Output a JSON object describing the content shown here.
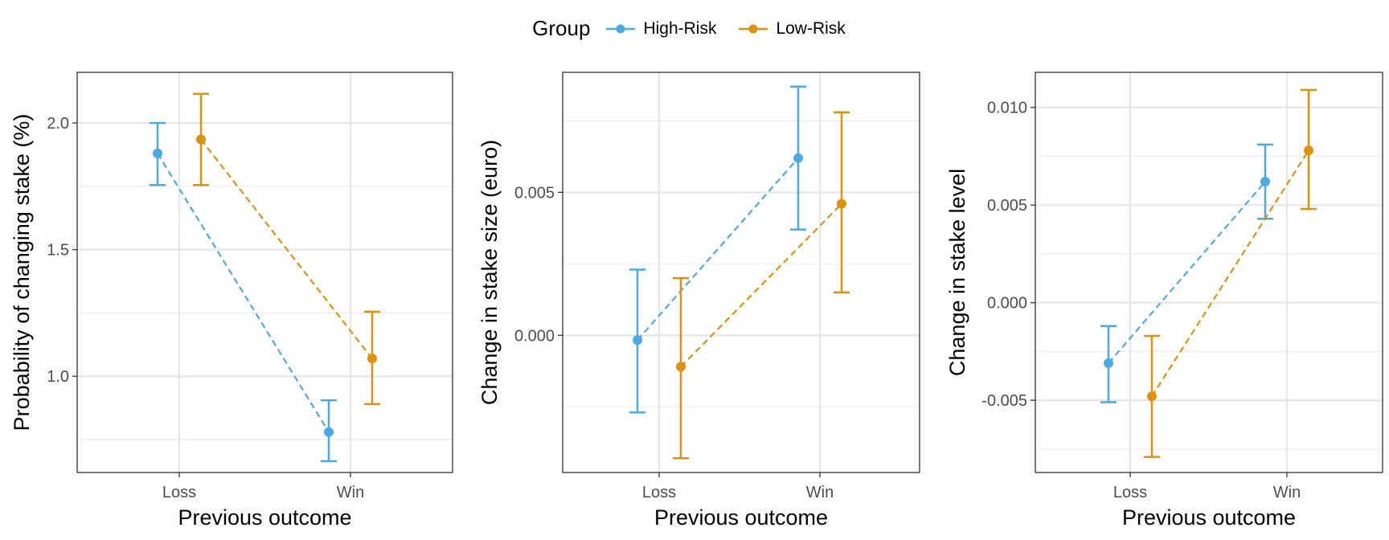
{
  "legend": {
    "title": "Group",
    "items": [
      {
        "label": "High-Risk",
        "color": "#4DA9E1"
      },
      {
        "label": "Low-Risk",
        "color": "#DE900F"
      }
    ]
  },
  "chart_data": [
    {
      "type": "line",
      "xlabel": "Previous outcome",
      "ylabel": "Probability of changing stake (%)",
      "categories": [
        "Loss",
        "Win"
      ],
      "ylim": [
        0.62,
        2.2
      ],
      "yticks": [
        1.0,
        1.5,
        2.0
      ],
      "ytick_labels": [
        "1.0",
        "1.5",
        "2.0"
      ],
      "grid": true,
      "series": [
        {
          "name": "High-Risk",
          "color": "#4DA9E1",
          "values": [
            1.88,
            0.78
          ],
          "lower": [
            1.755,
            0.665
          ],
          "upper": [
            2.0,
            0.905
          ]
        },
        {
          "name": "Low-Risk",
          "color": "#DE900F",
          "values": [
            1.935,
            1.07
          ],
          "lower": [
            1.755,
            0.89
          ],
          "upper": [
            2.115,
            1.255
          ]
        }
      ]
    },
    {
      "type": "line",
      "xlabel": "Previous outcome",
      "ylabel": "Change in stake size (euro)",
      "categories": [
        "Loss",
        "Win"
      ],
      "ylim": [
        -0.0048,
        0.0092
      ],
      "yticks": [
        0.0,
        0.005
      ],
      "ytick_labels": [
        "0.000",
        "0.005"
      ],
      "grid": true,
      "series": [
        {
          "name": "High-Risk",
          "color": "#4DA9E1",
          "values": [
            -0.00017,
            0.0062
          ],
          "lower": [
            -0.0027,
            0.0037
          ],
          "upper": [
            0.0023,
            0.0087
          ]
        },
        {
          "name": "Low-Risk",
          "color": "#DE900F",
          "values": [
            -0.0011,
            0.0046
          ],
          "lower": [
            -0.0043,
            0.0015
          ],
          "upper": [
            0.002,
            0.0078
          ]
        }
      ]
    },
    {
      "type": "line",
      "xlabel": "Previous outcome",
      "ylabel": "Change in stake level",
      "categories": [
        "Loss",
        "Win"
      ],
      "ylim": [
        -0.0087,
        0.0118
      ],
      "yticks": [
        -0.005,
        0.0,
        0.005,
        0.01
      ],
      "ytick_labels": [
        "-0.005",
        "0.000",
        "0.005",
        "0.010"
      ],
      "grid": true,
      "series": [
        {
          "name": "High-Risk",
          "color": "#4DA9E1",
          "values": [
            -0.0031,
            0.0062
          ],
          "lower": [
            -0.0051,
            0.0043
          ],
          "upper": [
            -0.0012,
            0.0081
          ]
        },
        {
          "name": "Low-Risk",
          "color": "#DE900F",
          "values": [
            -0.0048,
            0.0078
          ],
          "lower": [
            -0.0079,
            0.0048
          ],
          "upper": [
            -0.0017,
            0.0109
          ]
        }
      ]
    }
  ]
}
